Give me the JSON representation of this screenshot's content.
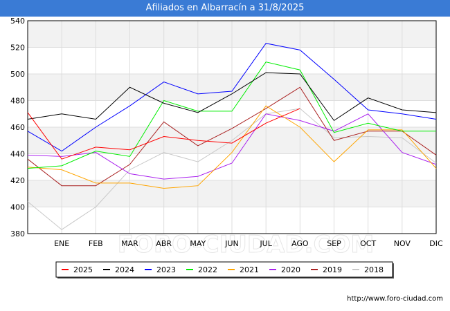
{
  "header": {
    "title": "Afiliados en Albarracín a 31/8/2025"
  },
  "footer": {
    "url": "http://www.foro-ciudad.com"
  },
  "watermark": "FORO-CIUDAD.COM",
  "chart_data": {
    "type": "line",
    "title": "Afiliados en Albarracín a 31/8/2025",
    "xlabel": "",
    "ylabel": "",
    "categories": [
      "",
      "ENE",
      "FEB",
      "MAR",
      "ABR",
      "MAY",
      "JUN",
      "JUL",
      "AGO",
      "SEP",
      "OCT",
      "NOV",
      "DIC"
    ],
    "ylim": [
      380,
      540
    ],
    "yticks": [
      380,
      400,
      420,
      440,
      460,
      480,
      500,
      520,
      540
    ],
    "grid": true,
    "legend_position": "bottom",
    "series": [
      {
        "name": "2025",
        "color": "#ff0000",
        "values": [
          471,
          436,
          445,
          443,
          453,
          450,
          448,
          463,
          474,
          null,
          null,
          null,
          null
        ]
      },
      {
        "name": "2024",
        "color": "#000000",
        "values": [
          466,
          470,
          466,
          490,
          478,
          471,
          485,
          501,
          500,
          465,
          482,
          473,
          471
        ]
      },
      {
        "name": "2023",
        "color": "#0000ff",
        "values": [
          457,
          442,
          460,
          476,
          494,
          485,
          487,
          523,
          518,
          496,
          473,
          470,
          466
        ]
      },
      {
        "name": "2022",
        "color": "#00ee00",
        "values": [
          429,
          431,
          442,
          438,
          480,
          472,
          472,
          509,
          503,
          456,
          463,
          457,
          457
        ]
      },
      {
        "name": "2021",
        "color": "#ffa500",
        "values": [
          430,
          428,
          418,
          418,
          414,
          416,
          441,
          476,
          460,
          434,
          458,
          458,
          429
        ]
      },
      {
        "name": "2020",
        "color": "#aa22ee",
        "values": [
          439,
          438,
          441,
          425,
          421,
          423,
          433,
          470,
          465,
          457,
          470,
          441,
          432
        ]
      },
      {
        "name": "2019",
        "color": "#aa2222",
        "values": [
          436,
          416,
          416,
          432,
          464,
          446,
          459,
          474,
          490,
          450,
          457,
          457,
          439
        ]
      },
      {
        "name": "2018",
        "color": "#c8c8c8",
        "values": [
          404,
          383,
          400,
          428,
          441,
          434,
          450,
          470,
          474,
          452,
          453,
          452,
          433
        ]
      }
    ]
  }
}
